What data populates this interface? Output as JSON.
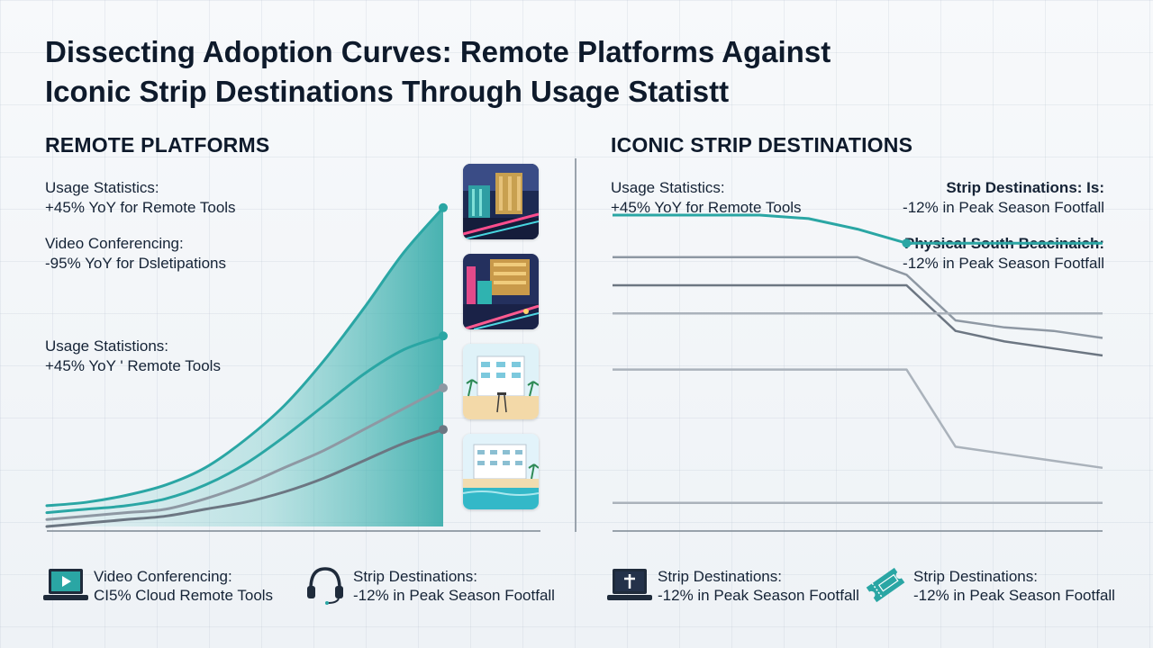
{
  "title": {
    "line1": "Dissecting Adoption Curves: Remote Platforms Against",
    "line2": "Iconic Strip Destinations Through Usage Statistt"
  },
  "left_panel": {
    "heading": "REMOTE PLATFORMS",
    "stats": [
      {
        "label": "Usage Statistics:",
        "value": "+45% YoY for Remote Tools"
      },
      {
        "label": "Video Conferencing:",
        "value": "-95% YoY for Dsletipations"
      },
      {
        "label": "Usage Statistions:",
        "value": "+45% YoY ' Remote Tools"
      }
    ]
  },
  "right_panel": {
    "heading": "ICONIC STRIP DESTINATIONS",
    "stats_left": [
      {
        "label": "Usage Statistics:",
        "value": "+45% YoY for Remote Tools"
      }
    ],
    "stats_right": [
      {
        "label": "Strip Destinations: Is:",
        "value": "-12% in Peak Season Footfall"
      },
      {
        "label": "Physical South Beacinaich:",
        "value": "-12% in Peak Season Footfall"
      }
    ]
  },
  "legend": [
    {
      "icon": "laptop-play-icon",
      "label": "Video Conferencing:",
      "value": "CI5% Cloud Remote Tools"
    },
    {
      "icon": "headset-icon",
      "label": "Strip Destinations:",
      "value": "-12% in Peak Season Footfall"
    },
    {
      "icon": "laptop-cross-icon",
      "label": "Strip Destinations:",
      "value": "-12% in Peak Season Footfall"
    },
    {
      "icon": "ticket-icon",
      "label": "Strip Destinations:",
      "value": "-12% in Peak Season Footfall"
    }
  ],
  "thumbnails": [
    "casino-hotel-night-icon",
    "strip-neon-street-icon",
    "art-deco-hotel-pool-icon",
    "beachfront-hotel-icon"
  ],
  "colors": {
    "teal": "#2aa6a4",
    "teal_fill": "#5cc3c0",
    "gray_mid": "#8e98a3",
    "gray_dark": "#6c7682",
    "gray_light": "#aab2bb",
    "text": "#0e1a2b"
  },
  "chart_data": [
    {
      "type": "area",
      "name": "remote-platforms",
      "x": [
        0,
        1,
        2,
        3,
        4,
        5,
        6,
        7,
        8,
        9,
        10
      ],
      "series": [
        {
          "values": [
            6,
            7,
            9,
            12,
            17,
            25,
            35,
            48,
            63,
            79,
            92
          ],
          "color": "#2aa6a4",
          "filled": true
        },
        {
          "values": [
            4,
            5,
            6,
            8,
            12,
            18,
            26,
            35,
            44,
            51,
            55
          ],
          "color": "#2aa6a4"
        },
        {
          "values": [
            2,
            3,
            4,
            5,
            8,
            12,
            17,
            22,
            28,
            34,
            40
          ],
          "color": "#8e98a3"
        },
        {
          "values": [
            0,
            1,
            2,
            3,
            5,
            7,
            10,
            14,
            19,
            24,
            28
          ],
          "color": "#6c7682"
        }
      ],
      "ylim": [
        0,
        100
      ],
      "grid": false
    },
    {
      "type": "line",
      "name": "iconic-strip-destinations",
      "x": [
        0,
        1,
        2,
        3,
        4,
        5,
        6,
        7,
        8,
        9,
        10
      ],
      "series": [
        {
          "values": [
            90,
            90,
            90,
            90,
            89,
            86,
            82,
            82,
            82,
            82,
            82
          ],
          "color": "#2aa6a4"
        },
        {
          "values": [
            78,
            78,
            78,
            78,
            78,
            78,
            73,
            60,
            58,
            57,
            55
          ],
          "color": "#8e98a3"
        },
        {
          "values": [
            70,
            70,
            70,
            70,
            70,
            70,
            70,
            57,
            54,
            52,
            50
          ],
          "color": "#6c7682"
        },
        {
          "values": [
            62,
            62,
            62,
            62,
            62,
            62,
            62,
            62,
            62,
            62,
            62
          ],
          "color": "#aab2bb"
        },
        {
          "values": [
            46,
            46,
            46,
            46,
            46,
            46,
            46,
            24,
            22,
            20,
            18
          ],
          "color": "#aab2bb"
        },
        {
          "values": [
            8,
            8,
            8,
            8,
            8,
            8,
            8,
            8,
            8,
            8,
            8
          ],
          "color": "#aab2bb"
        }
      ],
      "ylim": [
        0,
        100
      ],
      "grid": false
    }
  ]
}
